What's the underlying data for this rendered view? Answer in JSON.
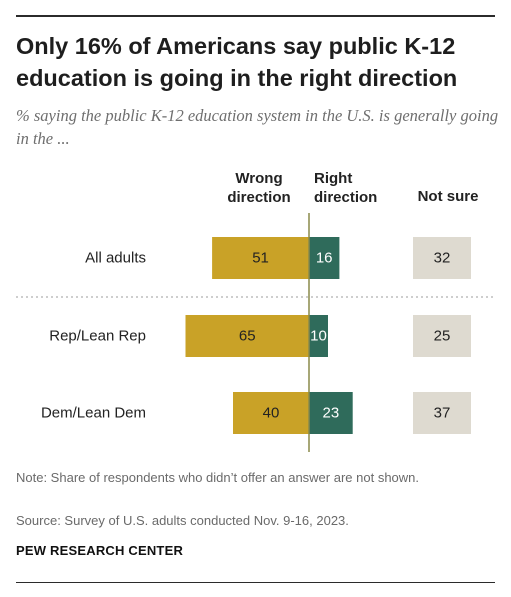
{
  "title": "Only 16% of Americans say public K-12 education is going in the right direction",
  "subtitle": "% saying the public K-12 education system in the U.S. is generally going in the ...",
  "note": "Note: Share of respondents who didn’t offer an answer are not shown.",
  "source": "Source: Survey of U.S. adults conducted Nov. 9-16, 2023.",
  "brand": "PEW RESEARCH CENTER",
  "colors": {
    "wrong": "#c9a227",
    "right": "#2f6b5b",
    "not_sure": "#dedad0",
    "axis": "#8a8a4a"
  },
  "chart_data": {
    "type": "bar",
    "title": "Only 16% of Americans say public K-12 education is going in the right direction",
    "subtitle": "% saying the public K-12 education system in the U.S. is generally going in the ...",
    "categories": [
      "All adults",
      "Rep/Lean Rep",
      "Dem/Lean Dem"
    ],
    "series": [
      {
        "name": "Wrong direction",
        "values": [
          51,
          65,
          40
        ]
      },
      {
        "name": "Right direction",
        "values": [
          16,
          10,
          23
        ]
      },
      {
        "name": "Not sure",
        "values": [
          32,
          25,
          37
        ]
      }
    ],
    "legend": "column headers above bars",
    "grid": false
  }
}
